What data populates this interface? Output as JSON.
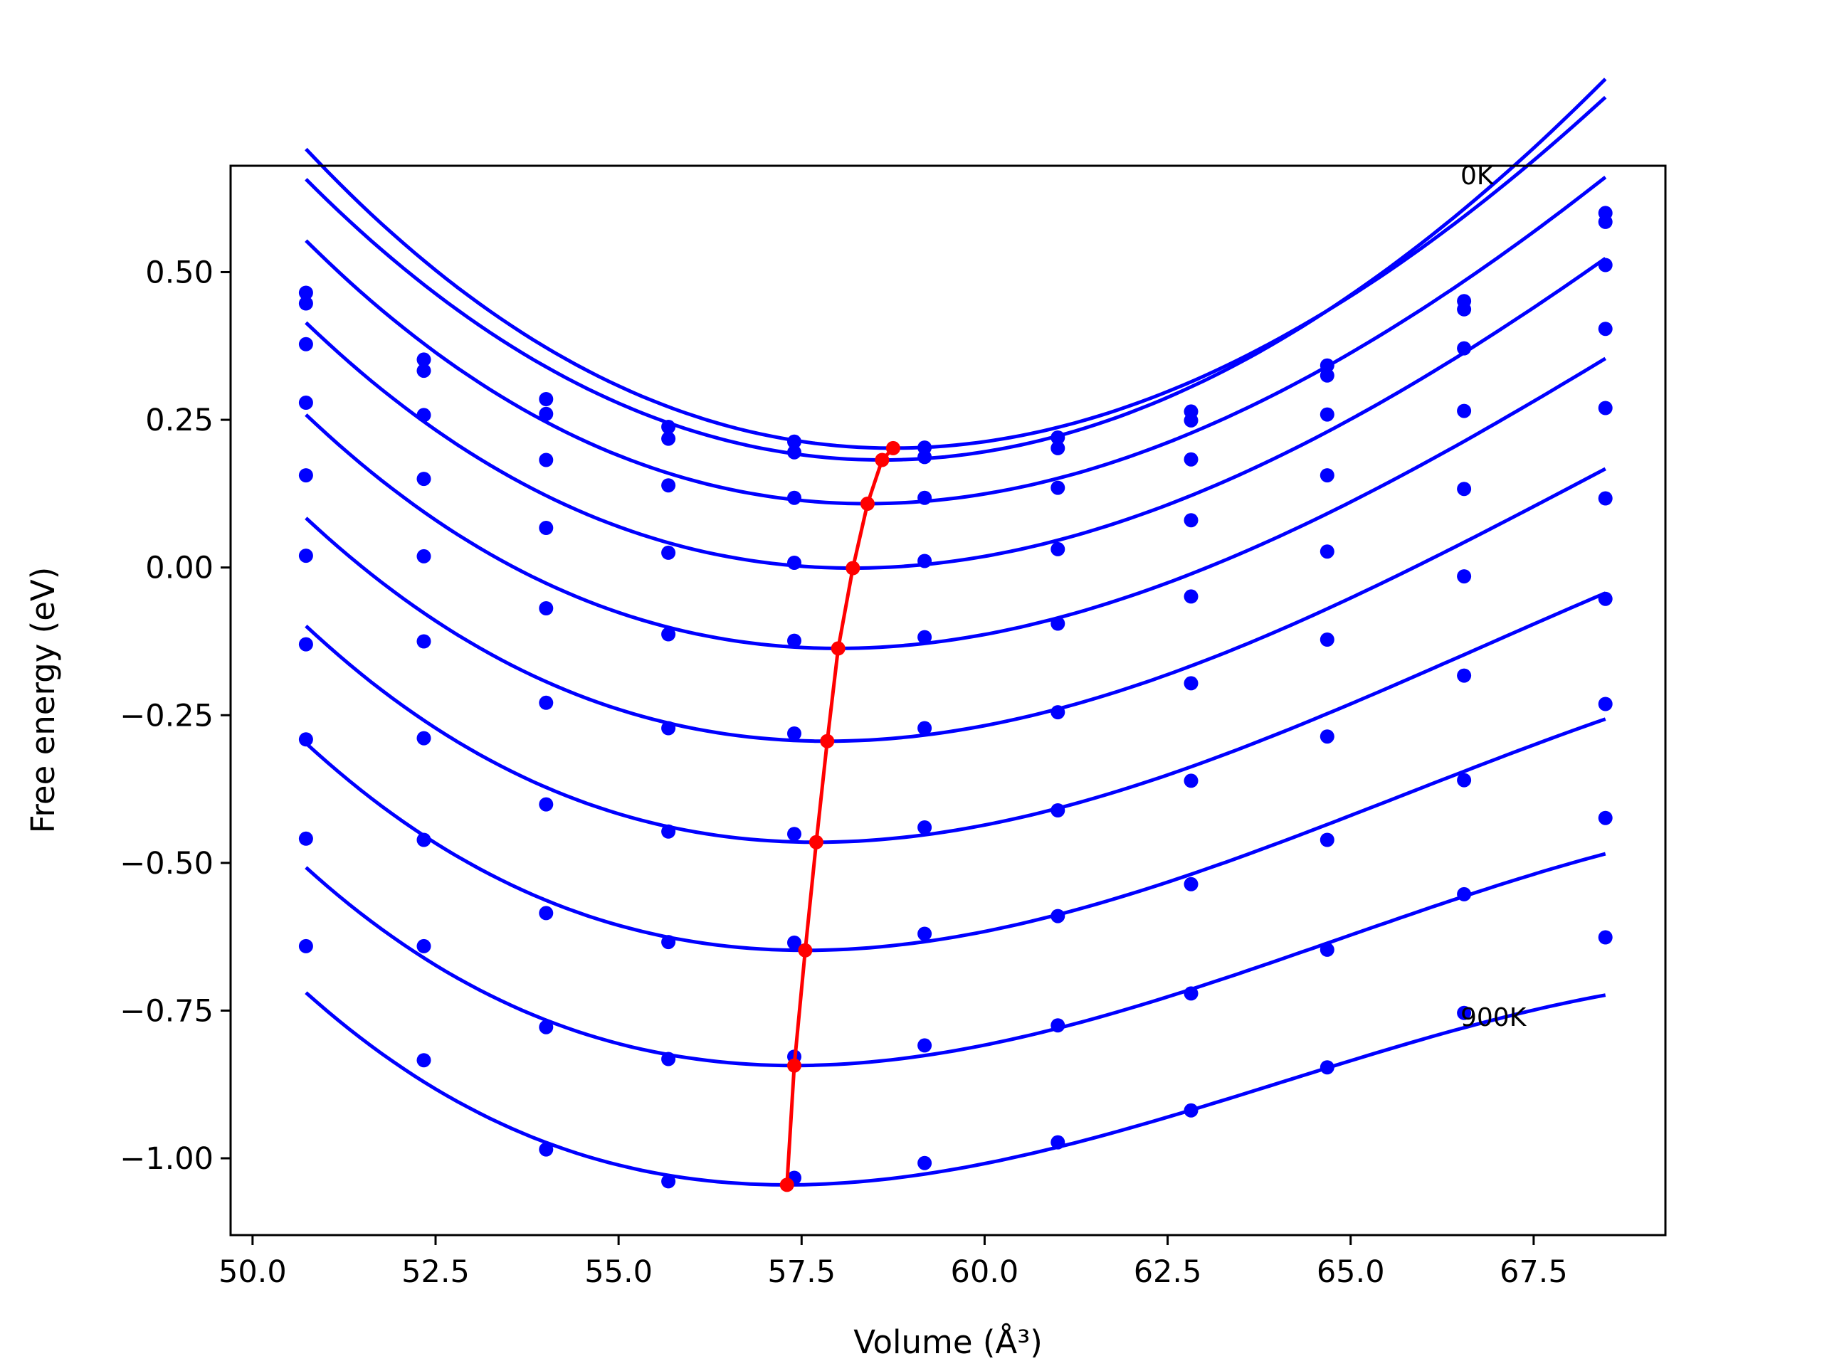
{
  "chart_data": {
    "type": "scatter",
    "title": "",
    "xlabel": "Volume (Å³)",
    "ylabel": "Free energy (eV)",
    "xlim": [
      49.7,
      69.3
    ],
    "ylim": [
      -1.13,
      0.68
    ],
    "xticks": [
      "50.0",
      "52.5",
      "55.0",
      "57.5",
      "60.0",
      "62.5",
      "65.0",
      "67.5"
    ],
    "xtick_values": [
      50.0,
      52.5,
      55.0,
      57.5,
      60.0,
      62.5,
      65.0,
      67.5
    ],
    "yticks": [
      "−1.00",
      "−0.75",
      "−0.50",
      "−0.25",
      "0.00",
      "0.25",
      "0.50"
    ],
    "ytick_values": [
      -1.0,
      -0.75,
      -0.5,
      -0.25,
      0.0,
      0.25,
      0.5
    ],
    "grid": false,
    "annotations": [
      {
        "text": "0K",
        "x": 66.5,
        "y": 0.67
      },
      {
        "text": "900K",
        "x": 66.5,
        "y": -0.76
      }
    ],
    "x_points": [
      50.73,
      52.34,
      54.01,
      55.68,
      57.4,
      59.18,
      61.0,
      62.82,
      64.68,
      66.55,
      68.48
    ],
    "series_color": "#0000ff",
    "min_line_color": "#ff0000",
    "series": [
      {
        "values": [
          0.465,
          0.352,
          0.285,
          0.238,
          0.213,
          0.203,
          0.22,
          0.264,
          0.342,
          0.451,
          0.6
        ],
        "fit": {
          "min_x": 58.75,
          "min_y": 0.202,
          "a": 0.00715,
          "b": -9e-05
        }
      },
      {
        "values": [
          0.447,
          0.333,
          0.26,
          0.218,
          0.195,
          0.187,
          0.202,
          0.249,
          0.325,
          0.437,
          0.585
        ],
        "fit": {
          "min_x": 58.6,
          "min_y": 0.182,
          "a": 0.0072,
          "b": -6e-05
        }
      },
      {
        "values": [
          0.378,
          0.258,
          0.182,
          0.139,
          0.118,
          0.118,
          0.135,
          0.183,
          0.259,
          0.371,
          0.512
        ],
        "fit": {
          "min_x": 58.4,
          "min_y": 0.108,
          "a": 0.00665,
          "b": -0.00012
        }
      },
      {
        "values": [
          0.279,
          0.15,
          0.067,
          0.025,
          0.008,
          0.011,
          0.031,
          0.08,
          0.156,
          0.265,
          0.404
        ],
        "fit": {
          "min_x": 58.2,
          "min_y": -0.001,
          "a": 0.0064,
          "b": -0.00014
        }
      },
      {
        "values": [
          0.156,
          0.019,
          -0.069,
          -0.113,
          -0.124,
          -0.118,
          -0.095,
          -0.049,
          0.027,
          0.133,
          0.27
        ],
        "fit": {
          "min_x": 58.0,
          "min_y": -0.137,
          "a": 0.00625,
          "b": -0.00017
        }
      },
      {
        "values": [
          0.02,
          -0.125,
          -0.229,
          -0.272,
          -0.281,
          -0.272,
          -0.245,
          -0.196,
          -0.122,
          -0.015,
          0.117
        ],
        "fit": {
          "min_x": 57.85,
          "min_y": -0.294,
          "a": 0.0061,
          "b": -0.00019
        }
      },
      {
        "values": [
          -0.13,
          -0.289,
          -0.401,
          -0.447,
          -0.451,
          -0.44,
          -0.411,
          -0.361,
          -0.286,
          -0.183,
          -0.053
        ],
        "fit": {
          "min_x": 57.7,
          "min_y": -0.465,
          "a": 0.006,
          "b": -0.00022
        }
      },
      {
        "values": [
          -0.291,
          -0.461,
          -0.585,
          -0.634,
          -0.635,
          -0.62,
          -0.59,
          -0.536,
          -0.461,
          -0.36,
          -0.231
        ],
        "fit": {
          "min_x": 57.55,
          "min_y": -0.648,
          "a": 0.0059,
          "b": -0.00024
        }
      },
      {
        "values": [
          -0.459,
          -0.641,
          -0.778,
          -0.832,
          -0.828,
          -0.809,
          -0.775,
          -0.721,
          -0.647,
          -0.553,
          -0.424
        ],
        "fit": {
          "min_x": 57.4,
          "min_y": -0.843,
          "a": 0.0058,
          "b": -0.00026
        }
      },
      {
        "values": [
          -0.641,
          -0.834,
          -0.985,
          -1.039,
          -1.033,
          -1.008,
          -0.973,
          -0.919,
          -0.846,
          -0.754,
          -0.626
        ],
        "fit": {
          "min_x": 57.3,
          "min_y": -1.045,
          "a": 0.0057,
          "b": -0.00028
        }
      }
    ],
    "min_line": {
      "x": [
        58.75,
        58.6,
        58.4,
        58.2,
        58.0,
        57.85,
        57.7,
        57.55,
        57.4,
        57.3
      ],
      "y": [
        0.202,
        0.182,
        0.108,
        -0.001,
        -0.137,
        -0.294,
        -0.465,
        -0.648,
        -0.843,
        -1.045
      ]
    }
  }
}
